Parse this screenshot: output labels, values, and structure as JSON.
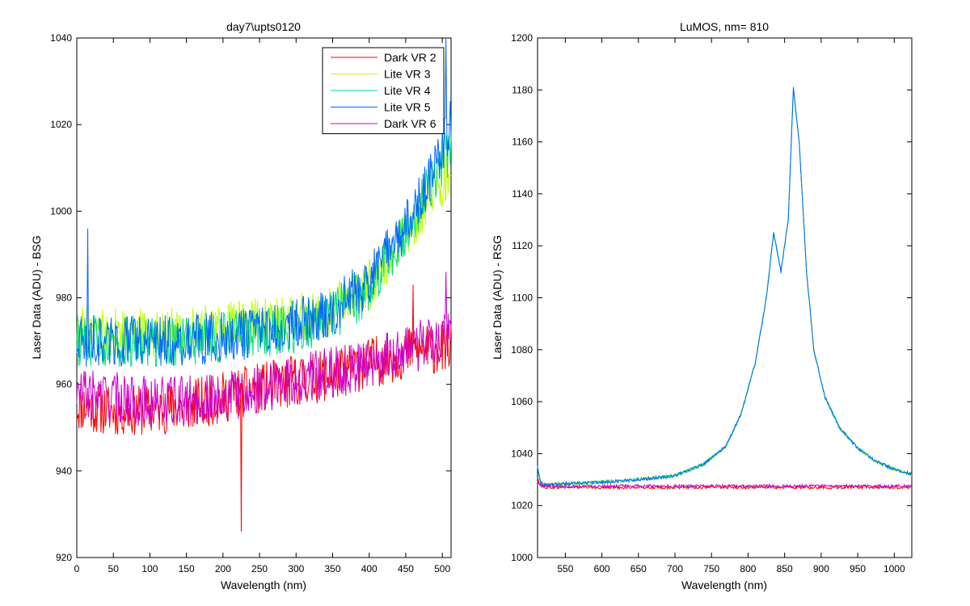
{
  "figure": {
    "background": "#ffffff"
  },
  "chart_data": [
    {
      "type": "line",
      "title": "day7\\upts0120",
      "xlabel": "Wavelength (nm)",
      "ylabel": "Laser Data (ADU) - BSG",
      "xlim": [
        0,
        512
      ],
      "ylim": [
        920,
        1040
      ],
      "xticks": [
        0,
        50,
        100,
        150,
        200,
        250,
        300,
        350,
        400,
        450,
        500
      ],
      "yticks": [
        920,
        940,
        960,
        980,
        1000,
        1020,
        1040
      ],
      "grid": false,
      "legend": {
        "position": "top-right"
      },
      "noise_amplitude": [
        6,
        6,
        6,
        6,
        6
      ],
      "series": [
        {
          "name": "Dark VR 2",
          "color": "#ff0000",
          "anchors": [
            [
              0,
              955
            ],
            [
              50,
              954
            ],
            [
              100,
              954
            ],
            [
              150,
              955
            ],
            [
              200,
              957
            ],
            [
              250,
              959
            ],
            [
              300,
              961
            ],
            [
              350,
              962
            ],
            [
              400,
              965
            ],
            [
              450,
              967
            ],
            [
              512,
              969
            ]
          ],
          "spikes": [
            [
              225,
              926
            ],
            [
              460,
              983
            ]
          ]
        },
        {
          "name": "Lite VR 3",
          "color": "#bfff00",
          "anchors": [
            [
              0,
              973
            ],
            [
              50,
              972
            ],
            [
              100,
              972
            ],
            [
              150,
              972
            ],
            [
              200,
              973
            ],
            [
              250,
              974
            ],
            [
              300,
              975
            ],
            [
              350,
              977
            ],
            [
              400,
              983
            ],
            [
              450,
              995
            ],
            [
              490,
              1005
            ],
            [
              512,
              1010
            ]
          ],
          "spikes": []
        },
        {
          "name": "Lite VR 4",
          "color": "#00e080",
          "anchors": [
            [
              0,
              970
            ],
            [
              50,
              970
            ],
            [
              100,
              970
            ],
            [
              150,
              970
            ],
            [
              200,
              971
            ],
            [
              250,
              972
            ],
            [
              300,
              973
            ],
            [
              350,
              976
            ],
            [
              400,
              982
            ],
            [
              450,
              995
            ],
            [
              490,
              1008
            ],
            [
              512,
              1015
            ]
          ],
          "spikes": []
        },
        {
          "name": "Lite VR 5",
          "color": "#0066ff",
          "anchors": [
            [
              0,
              970
            ],
            [
              50,
              970
            ],
            [
              100,
              970
            ],
            [
              150,
              970
            ],
            [
              200,
              971
            ],
            [
              250,
              972
            ],
            [
              300,
              974
            ],
            [
              350,
              977
            ],
            [
              400,
              984
            ],
            [
              450,
              997
            ],
            [
              490,
              1010
            ],
            [
              512,
              1020
            ]
          ],
          "spikes": [
            [
              15,
              996
            ],
            [
              505,
              1040
            ]
          ]
        },
        {
          "name": "Dark VR 6",
          "color": "#cc00cc",
          "anchors": [
            [
              0,
              958
            ],
            [
              50,
              957
            ],
            [
              100,
              956
            ],
            [
              150,
              956
            ],
            [
              200,
              957
            ],
            [
              250,
              959
            ],
            [
              300,
              961
            ],
            [
              350,
              963
            ],
            [
              400,
              965
            ],
            [
              450,
              968
            ],
            [
              512,
              971
            ]
          ],
          "spikes": [
            [
              505,
              986
            ]
          ]
        }
      ]
    },
    {
      "type": "line",
      "title": "LuMOS, nm= 810",
      "xlabel": "Wavelength (nm)",
      "ylabel": "Laser Data (ADU) - RSG",
      "xlim": [
        512,
        1024
      ],
      "ylim": [
        1000,
        1200
      ],
      "xticks": [
        550,
        600,
        650,
        700,
        750,
        800,
        850,
        900,
        950,
        1000
      ],
      "yticks": [
        1000,
        1020,
        1040,
        1060,
        1080,
        1100,
        1120,
        1140,
        1160,
        1180,
        1200
      ],
      "grid": false,
      "noise_amplitude": [
        0.6,
        0.6,
        0.6,
        0.6,
        0.6
      ],
      "series": [
        {
          "color": "#ff0000",
          "anchors": [
            [
              512,
              1030
            ],
            [
              516,
              1028
            ],
            [
              520,
              1027
            ],
            [
              1024,
              1027
            ]
          ],
          "spikes": []
        },
        {
          "color": "#bfff00",
          "anchors": [
            [
              512,
              1035
            ],
            [
              516,
              1029
            ],
            [
              520,
              1028
            ],
            [
              600,
              1029
            ],
            [
              650,
              1030
            ],
            [
              700,
              1031.5
            ],
            [
              740,
              1036
            ],
            [
              770,
              1043
            ],
            [
              790,
              1055
            ],
            [
              810,
              1075
            ],
            [
              825,
              1100
            ],
            [
              835,
              1125
            ],
            [
              845,
              1110
            ],
            [
              855,
              1130
            ],
            [
              862,
              1180
            ],
            [
              870,
              1160
            ],
            [
              880,
              1110
            ],
            [
              890,
              1080
            ],
            [
              905,
              1062
            ],
            [
              925,
              1050
            ],
            [
              950,
              1042
            ],
            [
              975,
              1037
            ],
            [
              1000,
              1034
            ],
            [
              1024,
              1032
            ]
          ],
          "spikes": []
        },
        {
          "color": "#00e080",
          "anchors": [
            [
              512,
              1035
            ],
            [
              516,
              1029
            ],
            [
              520,
              1028
            ],
            [
              600,
              1029
            ],
            [
              650,
              1030
            ],
            [
              700,
              1031.5
            ],
            [
              740,
              1036
            ],
            [
              770,
              1043
            ],
            [
              790,
              1055
            ],
            [
              810,
              1075
            ],
            [
              825,
              1100
            ],
            [
              835,
              1125
            ],
            [
              845,
              1110
            ],
            [
              855,
              1130
            ],
            [
              862,
              1180
            ],
            [
              870,
              1160
            ],
            [
              880,
              1110
            ],
            [
              890,
              1080
            ],
            [
              905,
              1062
            ],
            [
              925,
              1050
            ],
            [
              950,
              1042
            ],
            [
              975,
              1037
            ],
            [
              1000,
              1034
            ],
            [
              1024,
              1032
            ]
          ],
          "spikes": []
        },
        {
          "color": "#0066ff",
          "anchors": [
            [
              512,
              1035
            ],
            [
              516,
              1029
            ],
            [
              520,
              1028
            ],
            [
              600,
              1029
            ],
            [
              650,
              1030
            ],
            [
              700,
              1031.5
            ],
            [
              740,
              1036
            ],
            [
              770,
              1043
            ],
            [
              790,
              1055
            ],
            [
              810,
              1075
            ],
            [
              825,
              1100
            ],
            [
              835,
              1125
            ],
            [
              845,
              1110
            ],
            [
              855,
              1130
            ],
            [
              862,
              1181
            ],
            [
              870,
              1160
            ],
            [
              880,
              1110
            ],
            [
              890,
              1080
            ],
            [
              905,
              1062
            ],
            [
              925,
              1050
            ],
            [
              950,
              1042
            ],
            [
              975,
              1037
            ],
            [
              1000,
              1034
            ],
            [
              1024,
              1032
            ]
          ],
          "spikes": []
        },
        {
          "color": "#cc00cc",
          "anchors": [
            [
              512,
              1029
            ],
            [
              516,
              1028
            ],
            [
              520,
              1027.5
            ],
            [
              1024,
              1027.5
            ]
          ],
          "spikes": []
        }
      ]
    }
  ]
}
